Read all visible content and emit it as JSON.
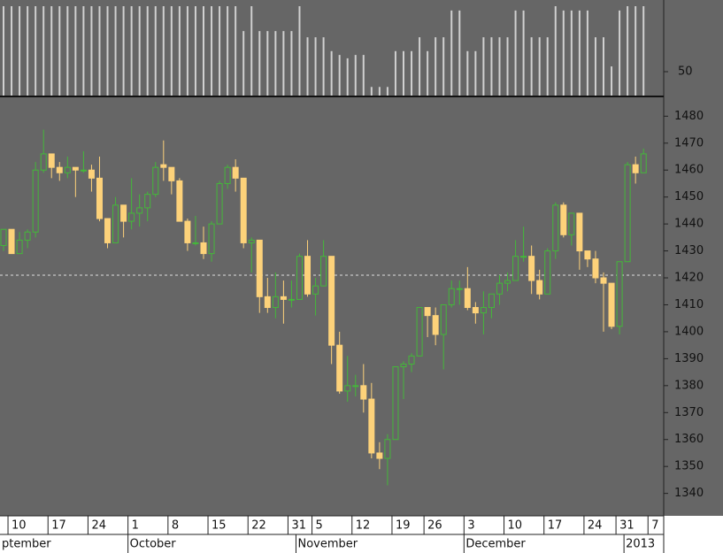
{
  "chart_data": [
    {
      "type": "bar",
      "color": "#d0d0d0",
      "ylim": [
        0,
        200
      ],
      "yticks": [
        50
      ],
      "values": [
        187,
        187,
        187,
        187,
        187,
        187,
        187,
        187,
        187,
        187,
        187,
        187,
        187,
        187,
        187,
        187,
        187,
        187,
        187,
        187,
        187,
        187,
        187,
        187,
        187,
        187,
        187,
        187,
        187,
        187,
        135,
        187,
        135,
        135,
        135,
        135,
        135,
        187,
        122,
        122,
        122,
        93,
        85,
        78,
        85,
        85,
        18,
        18,
        18,
        93,
        93,
        93,
        122,
        93,
        122,
        122,
        178,
        178,
        93,
        93,
        122,
        122,
        122,
        122,
        178,
        178,
        122,
        122,
        122,
        187,
        178,
        178,
        178,
        178,
        122,
        122,
        61,
        178,
        187,
        187,
        187,
        null
      ]
    },
    {
      "type": "candlestick",
      "up_color": "#44b83a",
      "down_color": "#fdd27a",
      "ylim": [
        1332,
        1487
      ],
      "yticks": [
        1340,
        1350,
        1360,
        1370,
        1380,
        1390,
        1400,
        1410,
        1420,
        1430,
        1440,
        1450,
        1460,
        1470,
        1480
      ],
      "reference_line": 1421,
      "categories": [
        null,
        "10",
        null,
        null,
        null,
        null,
        "17",
        null,
        null,
        null,
        null,
        "24",
        null,
        null,
        null,
        null,
        "1",
        null,
        null,
        null,
        null,
        "8",
        null,
        null,
        null,
        null,
        "15",
        null,
        null,
        null,
        null,
        "22",
        null,
        null,
        null,
        null,
        "31",
        null,
        null,
        "5",
        null,
        null,
        null,
        null,
        "12",
        null,
        null,
        null,
        null,
        "19",
        null,
        null,
        null,
        "26",
        null,
        null,
        null,
        null,
        "3",
        null,
        null,
        null,
        null,
        "10",
        null,
        null,
        null,
        null,
        "17",
        null,
        null,
        null,
        null,
        "24",
        null,
        null,
        null,
        "31",
        null,
        null,
        null,
        "7"
      ],
      "month_categories": [
        "ptember",
        null,
        null,
        null,
        null,
        null,
        null,
        null,
        null,
        null,
        null,
        null,
        null,
        null,
        null,
        null,
        "October",
        null,
        null,
        null,
        null,
        null,
        null,
        null,
        null,
        null,
        null,
        null,
        null,
        null,
        null,
        null,
        null,
        null,
        null,
        null,
        null,
        "November",
        null,
        null,
        null,
        null,
        null,
        null,
        null,
        null,
        null,
        null,
        null,
        null,
        null,
        null,
        null,
        null,
        null,
        null,
        null,
        null,
        "December",
        null,
        null,
        null,
        null,
        null,
        null,
        null,
        null,
        null,
        null,
        null,
        null,
        null,
        null,
        null,
        null,
        null,
        null,
        null,
        "2013",
        null,
        null,
        null
      ],
      "open": [
        1432,
        1438,
        1429,
        1434,
        1437,
        1460,
        1466,
        1461,
        1459,
        1461,
        1460,
        1460,
        1457,
        1442,
        1433,
        1447,
        1441,
        1444,
        1446,
        1451,
        1462,
        1461,
        1456,
        1441,
        1433,
        1433,
        1429,
        1440,
        1455,
        1461,
        1457,
        1433,
        1434,
        1413,
        1409,
        1413,
        1412,
        1412,
        1428,
        1414,
        1417,
        1428,
        1395,
        1378,
        1380,
        1380,
        1375,
        1355,
        1353,
        1360,
        1387,
        1388,
        1391,
        1409,
        1406,
        1399,
        1410,
        1416,
        1416,
        1409,
        1407,
        1409,
        1414,
        1418,
        1419,
        1428,
        1428,
        1419,
        1414,
        1430,
        1447,
        1436,
        1444,
        1430,
        1427,
        1420,
        1418,
        1402,
        1426,
        1462,
        1459,
        null
      ],
      "high": [
        1438,
        1438,
        1437,
        1438,
        1463,
        1475,
        1466,
        1463,
        1465,
        1461,
        1467,
        1462,
        1465,
        1442,
        1450,
        1447,
        1457,
        1451,
        1452,
        1463,
        1471,
        1461,
        1457,
        1442,
        1443,
        1439,
        1441,
        1456,
        1462,
        1464,
        1457,
        1435,
        1434,
        1420,
        1422,
        1419,
        1419,
        1429,
        1434,
        1420,
        1434,
        1428,
        1400,
        1391,
        1384,
        1388,
        1381,
        1359,
        1362,
        1387,
        1389,
        1392,
        1409,
        1409,
        1409,
        1410,
        1419,
        1419,
        1424,
        1411,
        1415,
        1414,
        1421,
        1422,
        1434,
        1439,
        1432,
        1423,
        1431,
        1448,
        1448,
        1444,
        1444,
        1430,
        1430,
        1422,
        1418,
        1426,
        1463,
        1465,
        1468,
        null
      ],
      "low": [
        1430,
        1429,
        1429,
        1431,
        1435,
        1459,
        1457,
        1456,
        1457,
        1450,
        1459,
        1452,
        1441,
        1431,
        1433,
        1435,
        1438,
        1439,
        1441,
        1450,
        1456,
        1451,
        1441,
        1430,
        1432,
        1427,
        1426,
        1440,
        1453,
        1452,
        1431,
        1422,
        1407,
        1407,
        1405,
        1403,
        1409,
        1412,
        1413,
        1406,
        1417,
        1388,
        1377,
        1374,
        1376,
        1370,
        1353,
        1349,
        1343,
        1360,
        1375,
        1385,
        1391,
        1398,
        1395,
        1386,
        1409,
        1410,
        1408,
        1403,
        1399,
        1405,
        1410,
        1415,
        1419,
        1426,
        1414,
        1412,
        1414,
        1427,
        1435,
        1432,
        1423,
        1424,
        1418,
        1400,
        1401,
        1399,
        1426,
        1455,
        1459,
        null
      ],
      "close": [
        1438,
        1429,
        1434,
        1437,
        1460,
        1466,
        1461,
        1459,
        1461,
        1460,
        1460,
        1457,
        1442,
        1433,
        1447,
        1441,
        1444,
        1446,
        1451,
        1461,
        1461,
        1456,
        1441,
        1433,
        1433,
        1429,
        1440,
        1455,
        1461,
        1457,
        1433,
        1434,
        1413,
        1409,
        1413,
        1412,
        1412,
        1428,
        1414,
        1417,
        1428,
        1395,
        1378,
        1380,
        1380,
        1375,
        1355,
        1353,
        1360,
        1387,
        1388,
        1391,
        1409,
        1406,
        1399,
        1410,
        1416,
        1416,
        1409,
        1407,
        1409,
        1414,
        1418,
        1419,
        1428,
        1428,
        1419,
        1414,
        1430,
        1447,
        1436,
        1444,
        1430,
        1427,
        1420,
        1418,
        1402,
        1426,
        1462,
        1459,
        1466,
        null
      ]
    }
  ]
}
